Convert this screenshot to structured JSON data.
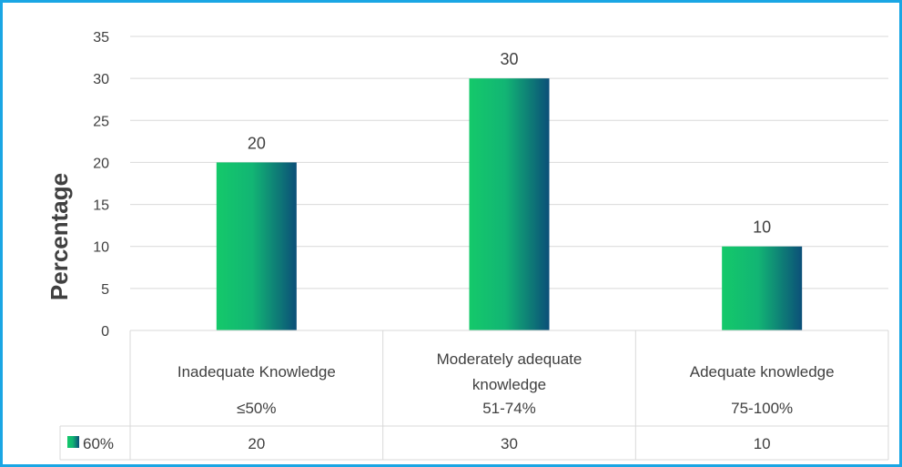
{
  "chart_data": {
    "type": "bar",
    "ylabel": "Percentage",
    "xlabel": "",
    "ylim": [
      0,
      35
    ],
    "yticks": [
      0,
      5,
      10,
      15,
      20,
      25,
      30,
      35
    ],
    "categories": [
      {
        "label_lines": [
          "Inadequate Knowledge"
        ],
        "range": "≤50%"
      },
      {
        "label_lines": [
          "Moderately adequate",
          "knowledge"
        ],
        "range": "51-74%"
      },
      {
        "label_lines": [
          "Adequate knowledge"
        ],
        "range": "75-100%"
      }
    ],
    "series": [
      {
        "name": "60%",
        "values": [
          20,
          30,
          10
        ]
      }
    ],
    "data_labels": true,
    "grid": true,
    "legend": "data-table",
    "colors": {
      "bar_start": "#14c96a",
      "bar_mid": "#12b574",
      "bar_end": "#0b4f78",
      "frame": "#1aa6e4",
      "grid": "#d9d9d9",
      "text": "#404040"
    }
  }
}
